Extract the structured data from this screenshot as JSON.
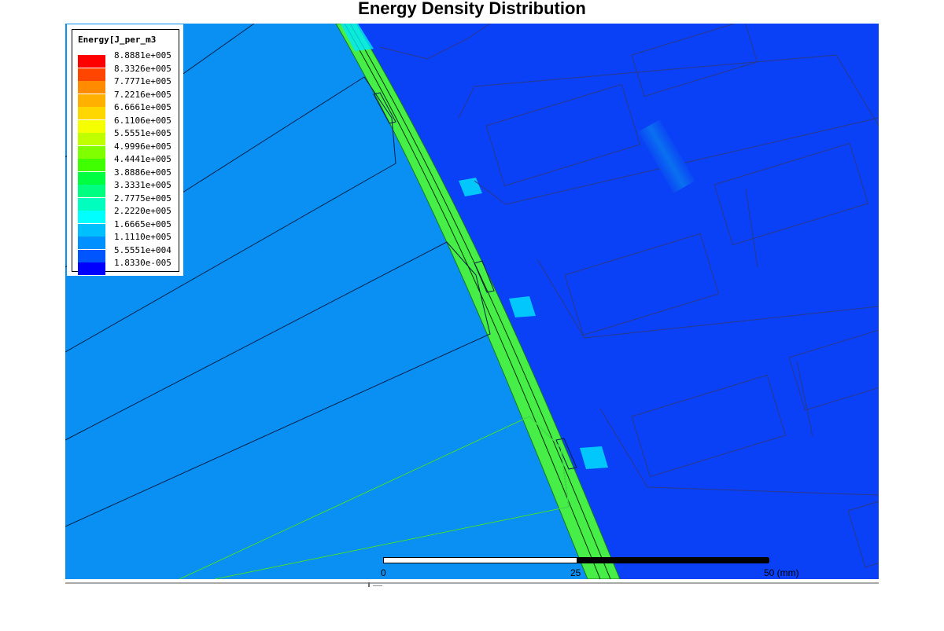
{
  "title": "Energy Density Distribution",
  "legend": {
    "title": "Energy[J_per_m3",
    "entries": [
      {
        "label": "8.8881e+005",
        "color": "#ff0000"
      },
      {
        "label": "8.3326e+005",
        "color": "#ff4500"
      },
      {
        "label": "7.7771e+005",
        "color": "#ff8c00"
      },
      {
        "label": "7.2216e+005",
        "color": "#ffb000"
      },
      {
        "label": "6.6661e+005",
        "color": "#ffd700"
      },
      {
        "label": "6.1106e+005",
        "color": "#f5ff00"
      },
      {
        "label": "5.5551e+005",
        "color": "#bfff00"
      },
      {
        "label": "4.9996e+005",
        "color": "#80ff00"
      },
      {
        "label": "4.4441e+005",
        "color": "#40ff00"
      },
      {
        "label": "3.8886e+005",
        "color": "#00ff40"
      },
      {
        "label": "3.3331e+005",
        "color": "#00ff80"
      },
      {
        "label": "2.7775e+005",
        "color": "#00ffbf"
      },
      {
        "label": "2.2220e+005",
        "color": "#00ffff"
      },
      {
        "label": "1.6665e+005",
        "color": "#00bfff"
      },
      {
        "label": "1.1110e+005",
        "color": "#0090ff"
      },
      {
        "label": "5.5551e+004",
        "color": "#0055ff"
      },
      {
        "label": "1.8330e-005",
        "color": "#0000ff"
      }
    ]
  },
  "scale_bar": {
    "labels": [
      "0",
      "25",
      "50 (mm)"
    ]
  },
  "colors": {
    "left_region": "#0a90f2",
    "right_region": "#0a40f6",
    "gap_band": "#48ee48"
  }
}
